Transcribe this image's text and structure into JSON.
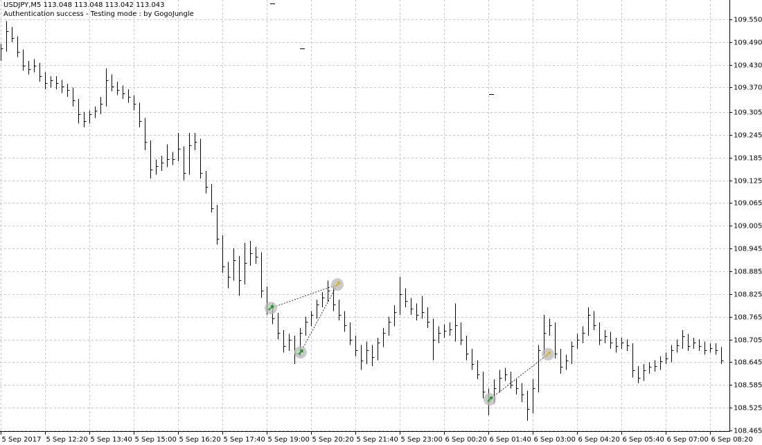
{
  "chart_data": {
    "type": "hlc",
    "symbol_line": "USDJPY,M5  113.048 113.048 113.042 113.043",
    "status_line": "Authentication success - Testing mode : by GogoJungle",
    "grid": true,
    "color": "#000000",
    "xlim": [
      -0.125,
      131.5
    ],
    "xticks": [
      {
        "value": 0,
        "label": "5 Sep 2017"
      },
      {
        "value": 8,
        "label": "5 Sep 12:20"
      },
      {
        "value": 16,
        "label": "5 Sep 13:40"
      },
      {
        "value": 24,
        "label": "5 Sep 15:00"
      },
      {
        "value": 32,
        "label": "5 Sep 16:20"
      },
      {
        "value": 40,
        "label": "5 Sep 17:40"
      },
      {
        "value": 48,
        "label": "5 Sep 19:00"
      },
      {
        "value": 56,
        "label": "5 Sep 20:20"
      },
      {
        "value": 64,
        "label": "5 Sep 21:40"
      },
      {
        "value": 72,
        "label": "5 Sep 23:00"
      },
      {
        "value": 80,
        "label": "6 Sep 00:20"
      },
      {
        "value": 88,
        "label": "6 Sep 01:40"
      },
      {
        "value": 96,
        "label": "6 Sep 03:00"
      },
      {
        "value": 104,
        "label": "6 Sep 04:20"
      },
      {
        "value": 112,
        "label": "6 Sep 05:40"
      },
      {
        "value": 120,
        "label": "6 Sep 07:00"
      },
      {
        "value": 128,
        "label": "6 Sep 08:20"
      }
    ],
    "ylim": [
      108.463,
      109.601
    ],
    "yticks": [
      {
        "value": 109.55,
        "label": "109.550"
      },
      {
        "value": 109.49,
        "label": "109.490"
      },
      {
        "value": 109.43,
        "label": "109.430"
      },
      {
        "value": 109.37,
        "label": "109.370"
      },
      {
        "value": 109.305,
        "label": "109.305"
      },
      {
        "value": 109.245,
        "label": "109.245"
      },
      {
        "value": 109.185,
        "label": "109.185"
      },
      {
        "value": 109.125,
        "label": "109.125"
      },
      {
        "value": 109.065,
        "label": "109.065"
      },
      {
        "value": 109.005,
        "label": "109.005"
      },
      {
        "value": 108.945,
        "label": "108.945"
      },
      {
        "value": 108.885,
        "label": "108.885"
      },
      {
        "value": 108.825,
        "label": "108.825"
      },
      {
        "value": 108.765,
        "label": "108.765"
      },
      {
        "value": 108.705,
        "label": "108.705"
      },
      {
        "value": 108.645,
        "label": "108.645"
      },
      {
        "value": 108.585,
        "label": "108.585"
      },
      {
        "value": 108.525,
        "label": "108.525"
      },
      {
        "value": 108.465,
        "label": "108.465"
      }
    ],
    "x": [
      0,
      1,
      2,
      3,
      4,
      5,
      6,
      7,
      8,
      9,
      10,
      11,
      12,
      13,
      14,
      15,
      16,
      17,
      18,
      19,
      20,
      21,
      22,
      23,
      24,
      25,
      26,
      27,
      28,
      29,
      30,
      31,
      32,
      33,
      34,
      35,
      36,
      37,
      38,
      39,
      40,
      41,
      42,
      43,
      44,
      45,
      46,
      47,
      48,
      49,
      50,
      51,
      52,
      53,
      54,
      55,
      56,
      57,
      58,
      59,
      60,
      61,
      62,
      63,
      64,
      65,
      66,
      67,
      68,
      69,
      70,
      71,
      72,
      73,
      74,
      75,
      76,
      77,
      78,
      79,
      80,
      81,
      82,
      83,
      84,
      85,
      86,
      87,
      88,
      89,
      90,
      91,
      92,
      93,
      94,
      95,
      96,
      97,
      98,
      99,
      100,
      101,
      102,
      103,
      104,
      105,
      106,
      107,
      108,
      109,
      110,
      111,
      112,
      113,
      114,
      115,
      116,
      117,
      118,
      119,
      120,
      121,
      122,
      123,
      124,
      125,
      126,
      127,
      128,
      129,
      130
    ],
    "high": [
      109.485,
      109.545,
      109.53,
      109.505,
      109.47,
      109.44,
      109.445,
      109.435,
      109.41,
      109.4,
      109.4,
      109.39,
      109.38,
      109.37,
      109.34,
      109.305,
      109.31,
      109.32,
      109.345,
      109.42,
      109.405,
      109.385,
      109.375,
      109.365,
      109.35,
      109.33,
      109.29,
      109.23,
      109.18,
      109.19,
      109.22,
      109.2,
      109.25,
      109.215,
      109.25,
      109.25,
      109.235,
      109.15,
      109.115,
      109.06,
      108.98,
      108.91,
      108.945,
      108.925,
      108.96,
      108.965,
      108.95,
      108.935,
      108.845,
      108.8,
      108.775,
      108.73,
      108.72,
      108.715,
      108.735,
      108.765,
      108.78,
      108.81,
      108.83,
      108.86,
      108.845,
      108.81,
      108.78,
      108.75,
      108.715,
      108.69,
      108.7,
      108.69,
      108.71,
      108.735,
      108.765,
      108.795,
      108.87,
      108.84,
      108.815,
      108.8,
      108.82,
      108.79,
      108.76,
      108.74,
      108.745,
      108.75,
      108.8,
      108.75,
      108.715,
      108.68,
      108.65,
      108.62,
      108.575,
      108.6,
      108.625,
      108.63,
      108.62,
      108.6,
      108.59,
      108.57,
      108.6,
      108.69,
      108.77,
      108.76,
      108.75,
      108.68,
      108.665,
      108.7,
      108.72,
      108.74,
      108.79,
      108.78,
      108.75,
      108.73,
      108.725,
      108.71,
      108.71,
      108.705,
      108.695,
      108.635,
      108.64,
      108.645,
      108.65,
      108.66,
      108.67,
      108.69,
      108.705,
      108.73,
      108.72,
      108.71,
      108.705,
      108.7,
      108.695,
      108.695,
      108.685
    ],
    "low": [
      109.44,
      109.465,
      109.49,
      109.45,
      109.415,
      109.405,
      109.41,
      109.385,
      109.365,
      109.37,
      109.365,
      109.355,
      109.345,
      109.32,
      109.275,
      109.265,
      109.275,
      109.29,
      109.3,
      109.32,
      109.36,
      109.35,
      109.34,
      109.33,
      109.31,
      109.265,
      109.205,
      109.13,
      109.14,
      109.15,
      109.16,
      109.165,
      109.175,
      109.125,
      109.14,
      109.205,
      109.13,
      109.09,
      109.04,
      108.955,
      108.88,
      108.84,
      108.86,
      108.82,
      108.85,
      108.9,
      108.905,
      108.815,
      108.77,
      108.745,
      108.705,
      108.67,
      108.675,
      108.64,
      108.66,
      108.715,
      108.74,
      108.76,
      108.79,
      108.805,
      108.78,
      108.755,
      108.725,
      108.69,
      108.66,
      108.625,
      108.64,
      108.635,
      108.65,
      108.685,
      108.715,
      108.74,
      108.77,
      108.79,
      108.77,
      108.755,
      108.76,
      108.735,
      108.65,
      108.695,
      108.71,
      108.715,
      108.7,
      108.69,
      108.65,
      108.625,
      108.6,
      108.55,
      108.505,
      108.535,
      108.565,
      108.595,
      108.575,
      108.56,
      108.54,
      108.49,
      108.51,
      108.565,
      108.665,
      108.715,
      108.655,
      108.615,
      108.625,
      108.64,
      108.68,
      108.695,
      108.715,
      108.73,
      108.69,
      108.695,
      108.68,
      108.67,
      108.68,
      108.675,
      108.605,
      108.59,
      108.595,
      108.615,
      108.62,
      108.625,
      108.64,
      108.645,
      108.67,
      108.68,
      108.675,
      108.68,
      108.675,
      108.665,
      108.67,
      108.665,
      108.64
    ],
    "close": [
      109.473,
      109.519,
      109.5,
      109.464,
      109.427,
      109.418,
      109.427,
      109.4,
      109.381,
      109.39,
      109.381,
      109.372,
      109.363,
      109.336,
      109.299,
      109.281,
      109.299,
      109.308,
      109.327,
      109.39,
      109.372,
      109.363,
      109.354,
      109.345,
      109.327,
      109.281,
      109.226,
      109.153,
      109.162,
      109.171,
      109.18,
      109.18,
      109.208,
      109.144,
      109.217,
      109.226,
      109.144,
      109.107,
      109.052,
      108.97,
      108.897,
      108.87,
      108.915,
      108.861,
      108.906,
      108.933,
      108.924,
      108.833,
      108.787,
      108.76,
      108.723,
      108.687,
      108.705,
      108.668,
      108.723,
      108.751,
      108.769,
      108.797,
      108.815,
      108.833,
      108.797,
      108.769,
      108.742,
      108.705,
      108.677,
      108.65,
      108.677,
      108.659,
      108.696,
      108.723,
      108.751,
      108.778,
      108.824,
      108.806,
      108.787,
      108.769,
      108.778,
      108.751,
      108.705,
      108.723,
      108.727,
      108.732,
      108.742,
      108.705,
      108.668,
      108.641,
      108.613,
      108.568,
      108.544,
      108.577,
      108.604,
      108.613,
      108.586,
      108.577,
      108.559,
      108.522,
      108.577,
      108.677,
      108.723,
      108.742,
      108.668,
      108.632,
      108.65,
      108.687,
      108.705,
      108.723,
      108.769,
      108.742,
      108.705,
      108.714,
      108.696,
      108.687,
      108.696,
      108.69,
      108.623,
      108.604,
      108.623,
      108.632,
      108.635,
      108.647,
      108.654,
      108.677,
      108.69,
      108.714,
      108.687,
      108.696,
      108.687,
      108.677,
      108.683,
      108.677,
      108.65
    ],
    "markers": {
      "x": [
        48.75,
        54.1,
        60.75,
        88.25,
        98.75
      ],
      "values": [
        108.788,
        108.671,
        108.85,
        108.547,
        108.666
      ],
      "colors": [
        "#00a000",
        "#00a000",
        "#e0b000",
        "#00a000",
        "#e0b000"
      ]
    }
  }
}
